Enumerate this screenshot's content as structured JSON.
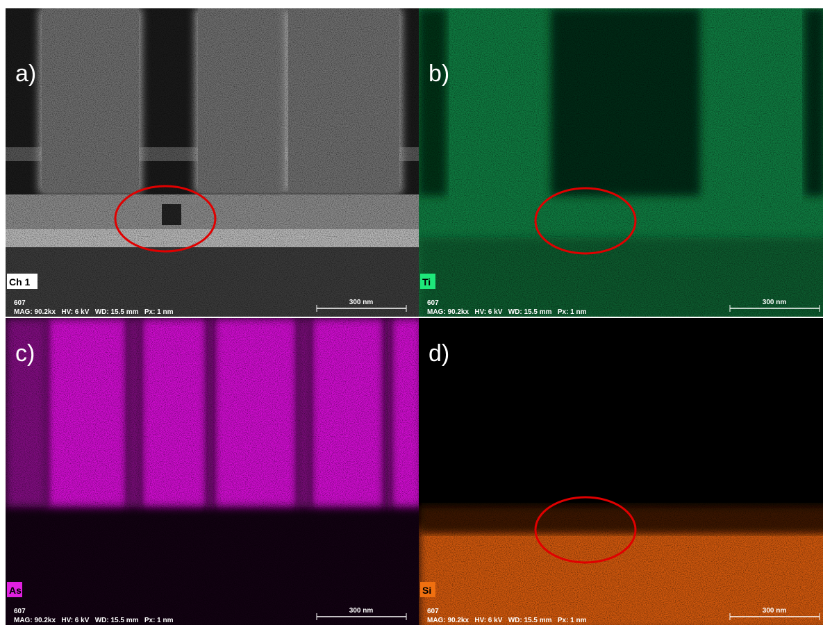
{
  "panels": [
    {
      "label": "a)",
      "channel": "Ch 1",
      "id": "607",
      "info": "MAG: 90.2kx   HV: 6 kV   WD: 15.5 mm   Px: 1 nm",
      "scale": "300 nm"
    },
    {
      "label": "b)",
      "channel": "Ti",
      "id": "607",
      "info": "MAG: 90.2kx   HV: 6 kV   WD: 15.5 mm   Px: 1 nm",
      "scale": "300 nm"
    },
    {
      "label": "c)",
      "channel": "As",
      "id": "607",
      "info": "MAG: 90.2kx   HV: 6 kV   WD: 15.5 mm   Px: 1 nm",
      "scale": "300 nm"
    },
    {
      "label": "d)",
      "channel": "Si",
      "id": "607",
      "info": "MAG: 90.2kx   HV: 6 kV   WD: 15.5 mm   Px: 1 nm",
      "scale": "300 nm"
    }
  ]
}
